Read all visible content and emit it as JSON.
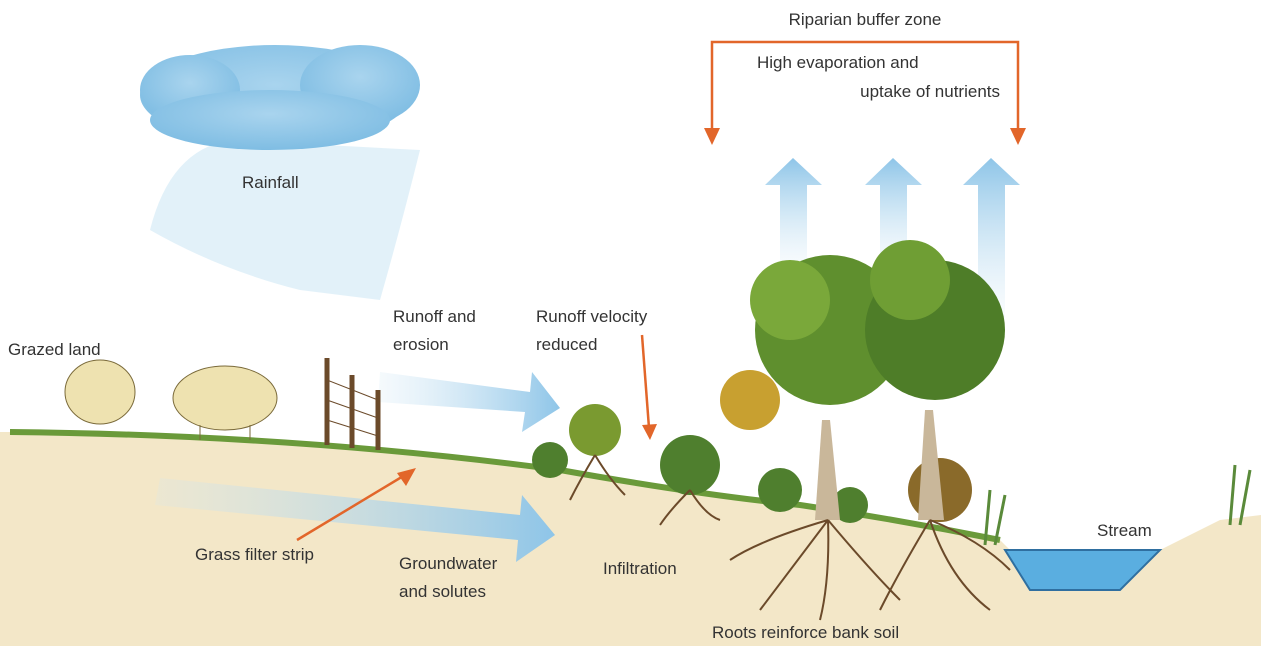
{
  "title": "Riparian buffer zone",
  "labels": {
    "evaporation": [
      "High evaporation and",
      "uptake of nutrients"
    ],
    "rainfall": "Rainfall",
    "grazed_land": "Grazed land",
    "runoff": [
      "Runoff and",
      "erosion"
    ],
    "runoff_velocity": [
      "Runoff velocity",
      "reduced"
    ],
    "grass_filter": "Grass filter strip",
    "groundwater": [
      "Groundwater",
      "and solutes"
    ],
    "infiltration": "Infiltration",
    "stream": "Stream",
    "roots": "Roots reinforce bank soil"
  }
}
